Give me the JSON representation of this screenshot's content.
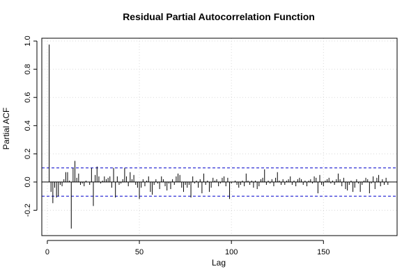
{
  "chart_data": {
    "type": "bar",
    "title": "Residual Partial Autocorrelation Function",
    "xlabel": "Lag",
    "ylabel": "Partial ACF",
    "xlim": [
      -3,
      190
    ],
    "ylim": [
      -0.38,
      1.02
    ],
    "x_ticks": [
      0,
      50,
      100,
      150
    ],
    "y_ticks": [
      -0.2,
      0.0,
      0.2,
      0.4,
      0.6,
      0.8,
      1.0
    ],
    "y_tick_labels": [
      "-0.2",
      "0.0",
      "0.2",
      "0.4",
      "0.6",
      "0.8",
      "1.0"
    ],
    "grid": true,
    "confidence_bounds": [
      0.1,
      -0.1
    ],
    "colors": {
      "bars": "#000000",
      "bounds": "#0000cc",
      "grid": "#d9d9d9",
      "zero_line": "#000000",
      "frame": "#000000"
    },
    "lags": [
      1,
      2,
      3,
      4,
      5,
      6,
      7,
      8,
      9,
      10,
      11,
      12,
      13,
      14,
      15,
      16,
      17,
      18,
      19,
      20,
      21,
      22,
      23,
      24,
      25,
      26,
      27,
      28,
      29,
      30,
      31,
      32,
      33,
      34,
      35,
      36,
      37,
      38,
      39,
      40,
      41,
      42,
      43,
      44,
      45,
      46,
      47,
      48,
      49,
      50,
      51,
      52,
      53,
      54,
      55,
      56,
      57,
      58,
      59,
      60,
      61,
      62,
      63,
      64,
      65,
      66,
      67,
      68,
      69,
      70,
      71,
      72,
      73,
      74,
      75,
      76,
      77,
      78,
      79,
      80,
      81,
      82,
      83,
      84,
      85,
      86,
      87,
      88,
      89,
      90,
      91,
      92,
      93,
      94,
      95,
      96,
      97,
      98,
      99,
      100,
      101,
      102,
      103,
      104,
      105,
      106,
      107,
      108,
      109,
      110,
      111,
      112,
      113,
      114,
      115,
      116,
      117,
      118,
      119,
      120,
      121,
      122,
      123,
      124,
      125,
      126,
      127,
      128,
      129,
      130,
      131,
      132,
      133,
      134,
      135,
      136,
      137,
      138,
      139,
      140,
      141,
      142,
      143,
      144,
      145,
      146,
      147,
      148,
      149,
      150,
      151,
      152,
      153,
      154,
      155,
      156,
      157,
      158,
      159,
      160,
      161,
      162,
      163,
      164,
      165,
      166,
      167,
      168,
      169,
      170,
      171,
      172,
      173,
      174,
      175,
      176,
      177,
      178,
      179,
      180,
      181,
      182,
      183,
      184,
      185
    ],
    "values": [
      0.975,
      -0.07,
      -0.15,
      -0.04,
      -0.11,
      -0.1,
      -0.02,
      -0.03,
      0.02,
      0.07,
      0.07,
      0.01,
      -0.33,
      0.1,
      0.15,
      0.03,
      0.06,
      -0.02,
      -0.01,
      -0.03,
      0.01,
      0.0,
      -0.02,
      0.1,
      -0.17,
      0.05,
      0.11,
      0.04,
      -0.01,
      0.01,
      0.04,
      0.02,
      0.03,
      0.04,
      -0.04,
      0.1,
      -0.11,
      0.04,
      -0.02,
      -0.01,
      0.02,
      0.1,
      0.04,
      -0.03,
      0.07,
      0.02,
      0.05,
      -0.02,
      -0.04,
      -0.12,
      -0.04,
      0.02,
      -0.03,
      0.01,
      0.04,
      -0.07,
      -0.09,
      -0.02,
      0.02,
      -0.01,
      -0.05,
      0.04,
      0.02,
      -0.03,
      -0.06,
      -0.01,
      -0.05,
      0.02,
      -0.02,
      0.04,
      0.06,
      0.05,
      -0.04,
      -0.07,
      -0.02,
      -0.04,
      -0.02,
      -0.11,
      0.04,
      -0.01,
      0.01,
      -0.04,
      0.02,
      -0.08,
      0.06,
      -0.02,
      0.01,
      -0.07,
      -0.04,
      0.03,
      0.01,
      0.02,
      -0.03,
      -0.01,
      0.03,
      0.04,
      -0.03,
      0.03,
      -0.12,
      -0.01,
      0.0,
      0.01,
      -0.02,
      -0.04,
      -0.02,
      0.01,
      -0.03,
      0.06,
      0.01,
      -0.02,
      0.01,
      -0.04,
      0.01,
      -0.05,
      -0.03,
      0.02,
      0.03,
      0.09,
      -0.02,
      0.01,
      -0.01,
      0.02,
      -0.03,
      0.03,
      0.07,
      0.01,
      -0.02,
      0.02,
      -0.02,
      0.01,
      0.02,
      0.04,
      -0.02,
      0.01,
      -0.03,
      0.02,
      0.03,
      0.02,
      -0.02,
      0.01,
      -0.03,
      0.01,
      0.02,
      -0.01,
      0.04,
      0.03,
      -0.08,
      0.05,
      -0.02,
      -0.03,
      0.01,
      0.02,
      0.03,
      -0.01,
      0.01,
      -0.02,
      0.02,
      0.06,
      0.02,
      -0.03,
      0.03,
      -0.05,
      -0.06,
      -0.02,
      0.01,
      -0.07,
      -0.04,
      0.02,
      -0.01,
      -0.07,
      -0.02,
      0.01,
      0.03,
      0.02,
      -0.08,
      -0.01,
      0.04,
      -0.05,
      0.03,
      0.05,
      -0.03,
      0.02,
      -0.02,
      0.03,
      -0.02
    ]
  }
}
